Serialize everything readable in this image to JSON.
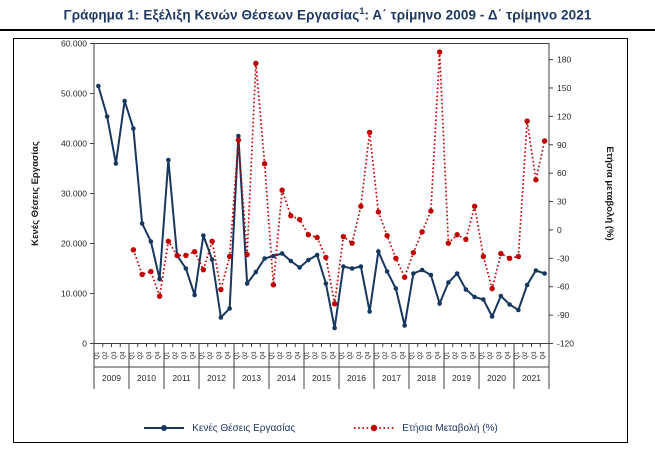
{
  "figure": {
    "title_prefix": "Γράφημα 1: Εξέλιξη Κενών Θέσεων Εργασίας",
    "footnote_marker": "1",
    "title_suffix": ": Α΄ τρίμηνο 2009 - Δ΄ τρίμηνο 2021"
  },
  "chart_data": {
    "type": "line",
    "title": "Γράφημα 1: Εξέλιξη Κενών Θέσεων Εργασίας: Α΄ τρίμηνο 2009 - Δ΄ τρίμηνο 2021",
    "grid": false,
    "legend_position": "bottom",
    "x_axis": {
      "years": [
        "2009",
        "2010",
        "2011",
        "2012",
        "2013",
        "2014",
        "2015",
        "2016",
        "2017",
        "2018",
        "2019",
        "2020",
        "2021"
      ],
      "quarter_labels": [
        "Q1",
        "Q2",
        "Q3",
        "Q4"
      ]
    },
    "left_axis": {
      "label": "Κενές Θέσεις Εργασίας",
      "min": 0,
      "max": 60000,
      "step": 10000,
      "tick_labels": [
        "0",
        "10.000",
        "20.000",
        "30.000",
        "40.000",
        "50.000",
        "60.000"
      ]
    },
    "right_axis": {
      "label": "Ετήσια μεταβολή (%)",
      "min": -120,
      "max": 197,
      "step": 30,
      "tick_values": [
        -120,
        -90,
        -60,
        -30,
        0,
        30,
        60,
        90,
        120,
        150,
        180
      ]
    },
    "series": [
      {
        "name": "Κενές Θέσεις Εργασίας",
        "axis": "left",
        "color": "#17375e",
        "style": "solid",
        "marker": "circle",
        "start_index": 0,
        "values": [
          51500,
          45400,
          36000,
          48500,
          43000,
          24000,
          20400,
          12900,
          36700,
          17600,
          15000,
          9700,
          21600,
          16800,
          5200,
          7000,
          41500,
          12000,
          14300,
          17000,
          17500,
          18000,
          16500,
          15200,
          16700,
          17700,
          12000,
          3100,
          15400,
          15000,
          15400,
          6400,
          18400,
          14400,
          11000,
          3600,
          14000,
          14700,
          13700,
          8000,
          12200,
          14000,
          10800,
          9300,
          8800,
          5400,
          9500,
          7800,
          6700,
          11700,
          14600,
          14000
        ]
      },
      {
        "name": "Ετήσια Μεταβολή (%)",
        "axis": "right",
        "color": "#c00000",
        "style": "dotted",
        "marker": "circle",
        "start_index": 4,
        "values": [
          -21,
          -47,
          -44,
          -70,
          -12,
          -27,
          -27,
          -23,
          -42,
          -12,
          -63,
          -28,
          95,
          -26,
          176,
          70,
          -58,
          42,
          15,
          11,
          -5,
          -8,
          -29,
          -78,
          -7,
          -14,
          25,
          103,
          19,
          -6,
          -30,
          -50,
          -24,
          -2,
          20,
          188,
          -14,
          -5,
          -10,
          25,
          -28,
          -62,
          -25,
          -30,
          -28,
          115,
          53,
          94
        ]
      }
    ]
  }
}
